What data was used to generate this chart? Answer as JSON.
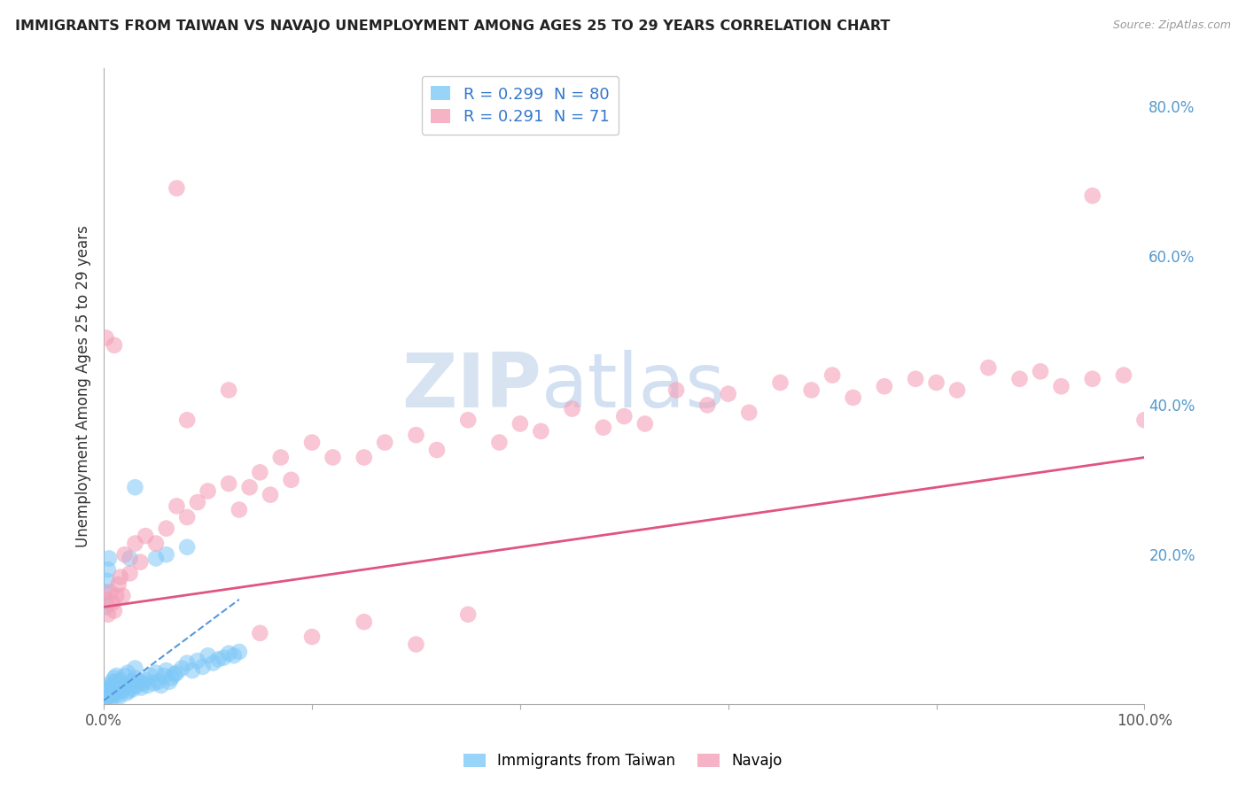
{
  "title": "IMMIGRANTS FROM TAIWAN VS NAVAJO UNEMPLOYMENT AMONG AGES 25 TO 29 YEARS CORRELATION CHART",
  "source": "Source: ZipAtlas.com",
  "ylabel": "Unemployment Among Ages 25 to 29 years",
  "xlim": [
    0.0,
    1.0
  ],
  "ylim": [
    0.0,
    0.85
  ],
  "legend_entries": [
    {
      "label_r": "R = 0.299",
      "label_n": "N = 80",
      "color": "#7ec8f7"
    },
    {
      "label_r": "R = 0.291",
      "label_n": "N = 71",
      "color": "#f4a0b8"
    }
  ],
  "taiwan_scatter_x": [
    0.001,
    0.002,
    0.003,
    0.003,
    0.004,
    0.005,
    0.005,
    0.006,
    0.006,
    0.007,
    0.007,
    0.008,
    0.008,
    0.009,
    0.009,
    0.01,
    0.01,
    0.011,
    0.011,
    0.012,
    0.012,
    0.013,
    0.013,
    0.014,
    0.015,
    0.015,
    0.016,
    0.017,
    0.018,
    0.019,
    0.02,
    0.021,
    0.022,
    0.023,
    0.024,
    0.025,
    0.026,
    0.027,
    0.028,
    0.03,
    0.03,
    0.032,
    0.034,
    0.036,
    0.038,
    0.04,
    0.042,
    0.045,
    0.048,
    0.05,
    0.052,
    0.055,
    0.058,
    0.06,
    0.063,
    0.065,
    0.068,
    0.07,
    0.075,
    0.08,
    0.085,
    0.09,
    0.095,
    0.1,
    0.105,
    0.11,
    0.115,
    0.12,
    0.125,
    0.13,
    0.001,
    0.002,
    0.003,
    0.004,
    0.005,
    0.025,
    0.05,
    0.06,
    0.08,
    0.03
  ],
  "taiwan_scatter_y": [
    0.005,
    0.008,
    0.012,
    0.02,
    0.01,
    0.015,
    0.025,
    0.01,
    0.018,
    0.008,
    0.022,
    0.018,
    0.03,
    0.014,
    0.025,
    0.022,
    0.035,
    0.015,
    0.03,
    0.02,
    0.038,
    0.012,
    0.025,
    0.028,
    0.01,
    0.022,
    0.032,
    0.018,
    0.025,
    0.02,
    0.038,
    0.025,
    0.015,
    0.042,
    0.018,
    0.028,
    0.022,
    0.03,
    0.02,
    0.035,
    0.048,
    0.025,
    0.03,
    0.022,
    0.028,
    0.032,
    0.025,
    0.038,
    0.028,
    0.042,
    0.03,
    0.025,
    0.038,
    0.045,
    0.03,
    0.035,
    0.04,
    0.042,
    0.048,
    0.055,
    0.045,
    0.058,
    0.05,
    0.065,
    0.055,
    0.06,
    0.062,
    0.068,
    0.065,
    0.07,
    0.15,
    0.13,
    0.165,
    0.18,
    0.195,
    0.195,
    0.195,
    0.2,
    0.21,
    0.29
  ],
  "navajo_scatter_x": [
    0.002,
    0.004,
    0.006,
    0.008,
    0.01,
    0.012,
    0.014,
    0.016,
    0.018,
    0.02,
    0.025,
    0.03,
    0.035,
    0.04,
    0.05,
    0.06,
    0.07,
    0.08,
    0.09,
    0.1,
    0.12,
    0.13,
    0.14,
    0.15,
    0.16,
    0.17,
    0.18,
    0.2,
    0.22,
    0.25,
    0.27,
    0.3,
    0.32,
    0.35,
    0.38,
    0.4,
    0.42,
    0.45,
    0.48,
    0.5,
    0.52,
    0.55,
    0.58,
    0.6,
    0.62,
    0.65,
    0.68,
    0.7,
    0.72,
    0.75,
    0.78,
    0.8,
    0.82,
    0.85,
    0.88,
    0.9,
    0.92,
    0.95,
    0.98,
    1.0,
    0.01,
    0.08,
    0.12,
    0.002,
    0.07,
    0.95,
    0.15,
    0.2,
    0.25,
    0.3,
    0.35
  ],
  "navajo_scatter_y": [
    0.14,
    0.12,
    0.15,
    0.135,
    0.125,
    0.145,
    0.16,
    0.17,
    0.145,
    0.2,
    0.175,
    0.215,
    0.19,
    0.225,
    0.215,
    0.235,
    0.265,
    0.25,
    0.27,
    0.285,
    0.295,
    0.26,
    0.29,
    0.31,
    0.28,
    0.33,
    0.3,
    0.35,
    0.33,
    0.33,
    0.35,
    0.36,
    0.34,
    0.38,
    0.35,
    0.375,
    0.365,
    0.395,
    0.37,
    0.385,
    0.375,
    0.42,
    0.4,
    0.415,
    0.39,
    0.43,
    0.42,
    0.44,
    0.41,
    0.425,
    0.435,
    0.43,
    0.42,
    0.45,
    0.435,
    0.445,
    0.425,
    0.435,
    0.44,
    0.38,
    0.48,
    0.38,
    0.42,
    0.49,
    0.69,
    0.68,
    0.095,
    0.09,
    0.11,
    0.08,
    0.12
  ],
  "taiwan_line": [
    [
      0.0,
      0.005
    ],
    [
      0.13,
      0.14
    ]
  ],
  "navajo_line": [
    [
      0.0,
      0.13
    ],
    [
      1.0,
      0.33
    ]
  ],
  "taiwan_color": "#7ec8f7",
  "navajo_color": "#f4a0b8",
  "taiwan_line_color": "#5599dd",
  "navajo_line_color": "#e05580",
  "watermark_zip": "ZIP",
  "watermark_atlas": "atlas",
  "bg_color": "#ffffff",
  "grid_color": "#d8d8d8"
}
